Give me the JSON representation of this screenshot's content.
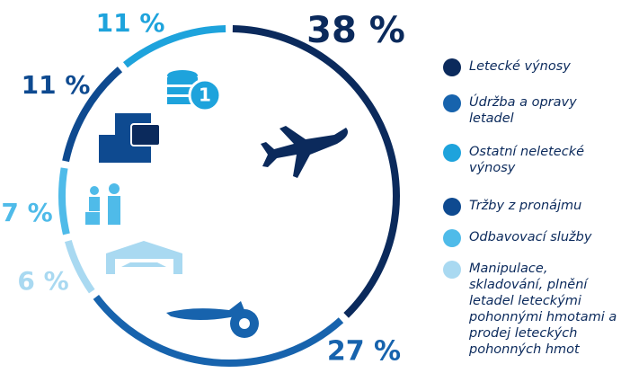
{
  "chart_data": {
    "type": "donut",
    "categories": [
      "Letecké výnosy",
      "Údržba a opravy letadel",
      "Ostatní neletecké výnosy",
      "Tržby z pronájmu",
      "Odbavovací služby",
      "Manipulace, skladování, plnění letadel leteckými pohonnými hmotami a prodej leteckých pohonných hmot"
    ],
    "values": [
      38,
      27,
      11,
      11,
      7,
      6
    ],
    "value_labels": [
      "38 %",
      "27 %",
      "11 %",
      "11 %",
      "7 %",
      "6 %"
    ],
    "colors": [
      "#0b2a5c",
      "#1763ad",
      "#1ea3dc",
      "#0e4a90",
      "#4fbbe9",
      "#a9d9f1"
    ]
  }
}
